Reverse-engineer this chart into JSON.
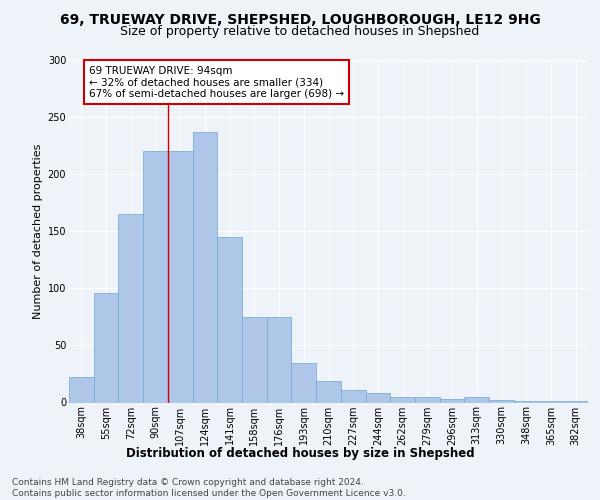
{
  "title1": "69, TRUEWAY DRIVE, SHEPSHED, LOUGHBOROUGH, LE12 9HG",
  "title2": "Size of property relative to detached houses in Shepshed",
  "xlabel": "Distribution of detached houses by size in Shepshed",
  "ylabel": "Number of detached properties",
  "categories": [
    "38sqm",
    "55sqm",
    "72sqm",
    "90sqm",
    "107sqm",
    "124sqm",
    "141sqm",
    "158sqm",
    "176sqm",
    "193sqm",
    "210sqm",
    "227sqm",
    "244sqm",
    "262sqm",
    "279sqm",
    "296sqm",
    "313sqm",
    "330sqm",
    "348sqm",
    "365sqm",
    "382sqm"
  ],
  "values": [
    22,
    96,
    165,
    220,
    220,
    237,
    145,
    75,
    75,
    35,
    19,
    11,
    8,
    5,
    5,
    3,
    5,
    2,
    1,
    1,
    1
  ],
  "bar_color": "#aec6e8",
  "bar_edge_color": "#6fa8d4",
  "property_line_x": 3.5,
  "annotation_text": "69 TRUEWAY DRIVE: 94sqm\n← 32% of detached houses are smaller (334)\n67% of semi-detached houses are larger (698) →",
  "annotation_box_color": "#ffffff",
  "annotation_box_edge": "#cc0000",
  "vline_color": "#cc0000",
  "footer": "Contains HM Land Registry data © Crown copyright and database right 2024.\nContains public sector information licensed under the Open Government Licence v3.0.",
  "ylim": [
    0,
    300
  ],
  "yticks": [
    0,
    50,
    100,
    150,
    200,
    250,
    300
  ],
  "background_color": "#eef2f9",
  "grid_color": "#ffffff",
  "title1_fontsize": 10,
  "title2_fontsize": 9,
  "xlabel_fontsize": 8.5,
  "ylabel_fontsize": 8,
  "tick_fontsize": 7,
  "footer_fontsize": 6.5,
  "annotation_fontsize": 7.5
}
